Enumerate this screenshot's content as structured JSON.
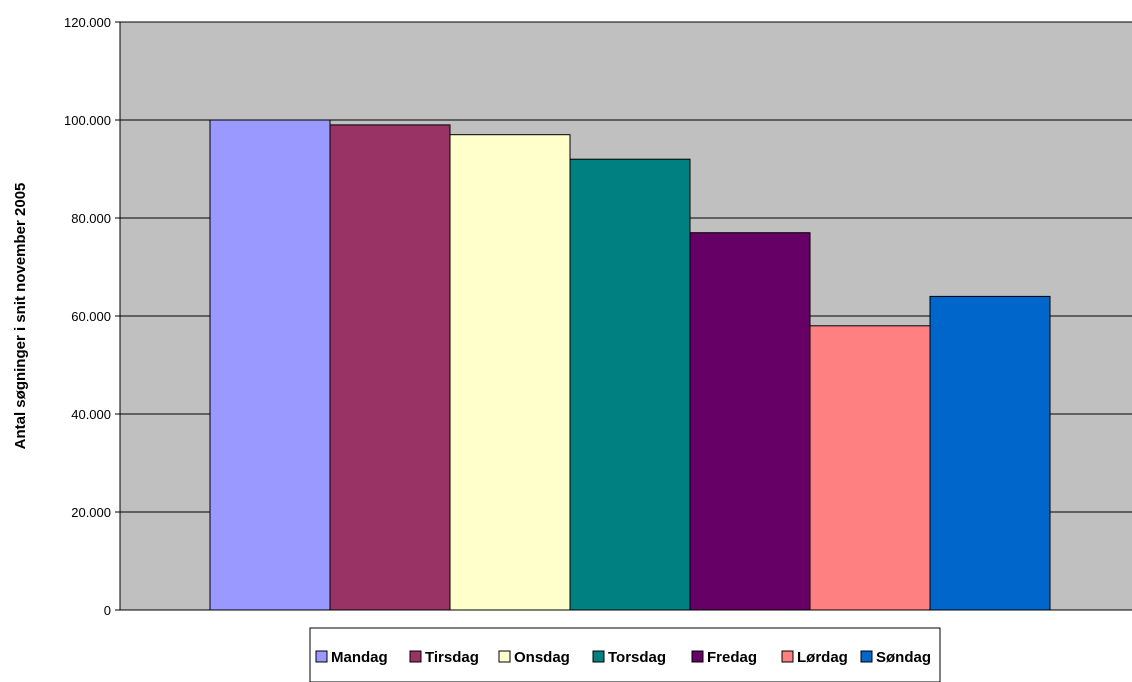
{
  "chart_data": {
    "type": "bar",
    "title": "",
    "xlabel": "",
    "ylabel": "Antal søgninger i snit november 2005",
    "ylim": [
      0,
      120000
    ],
    "y_tick_values": [
      0,
      20000,
      40000,
      60000,
      80000,
      100000,
      120000
    ],
    "y_tick_labels": [
      "0",
      "20.000",
      "40.000",
      "60.000",
      "80.000",
      "100.000",
      "120.000"
    ],
    "grid": true,
    "legend_position": "bottom",
    "plot_background": "#c0c0c0",
    "series": [
      {
        "name": "Mandag",
        "value": 100000,
        "color": "#9999ff"
      },
      {
        "name": "Tirsdag",
        "value": 99000,
        "color": "#993366"
      },
      {
        "name": "Onsdag",
        "value": 97000,
        "color": "#ffffcc"
      },
      {
        "name": "Torsdag",
        "value": 92000,
        "color": "#008080"
      },
      {
        "name": "Fredag",
        "value": 77000,
        "color": "#660066"
      },
      {
        "name": "Lørdag",
        "value": 58000,
        "color": "#ff8080"
      },
      {
        "name": "Søndag",
        "value": 64000,
        "color": "#0066cc"
      }
    ]
  }
}
